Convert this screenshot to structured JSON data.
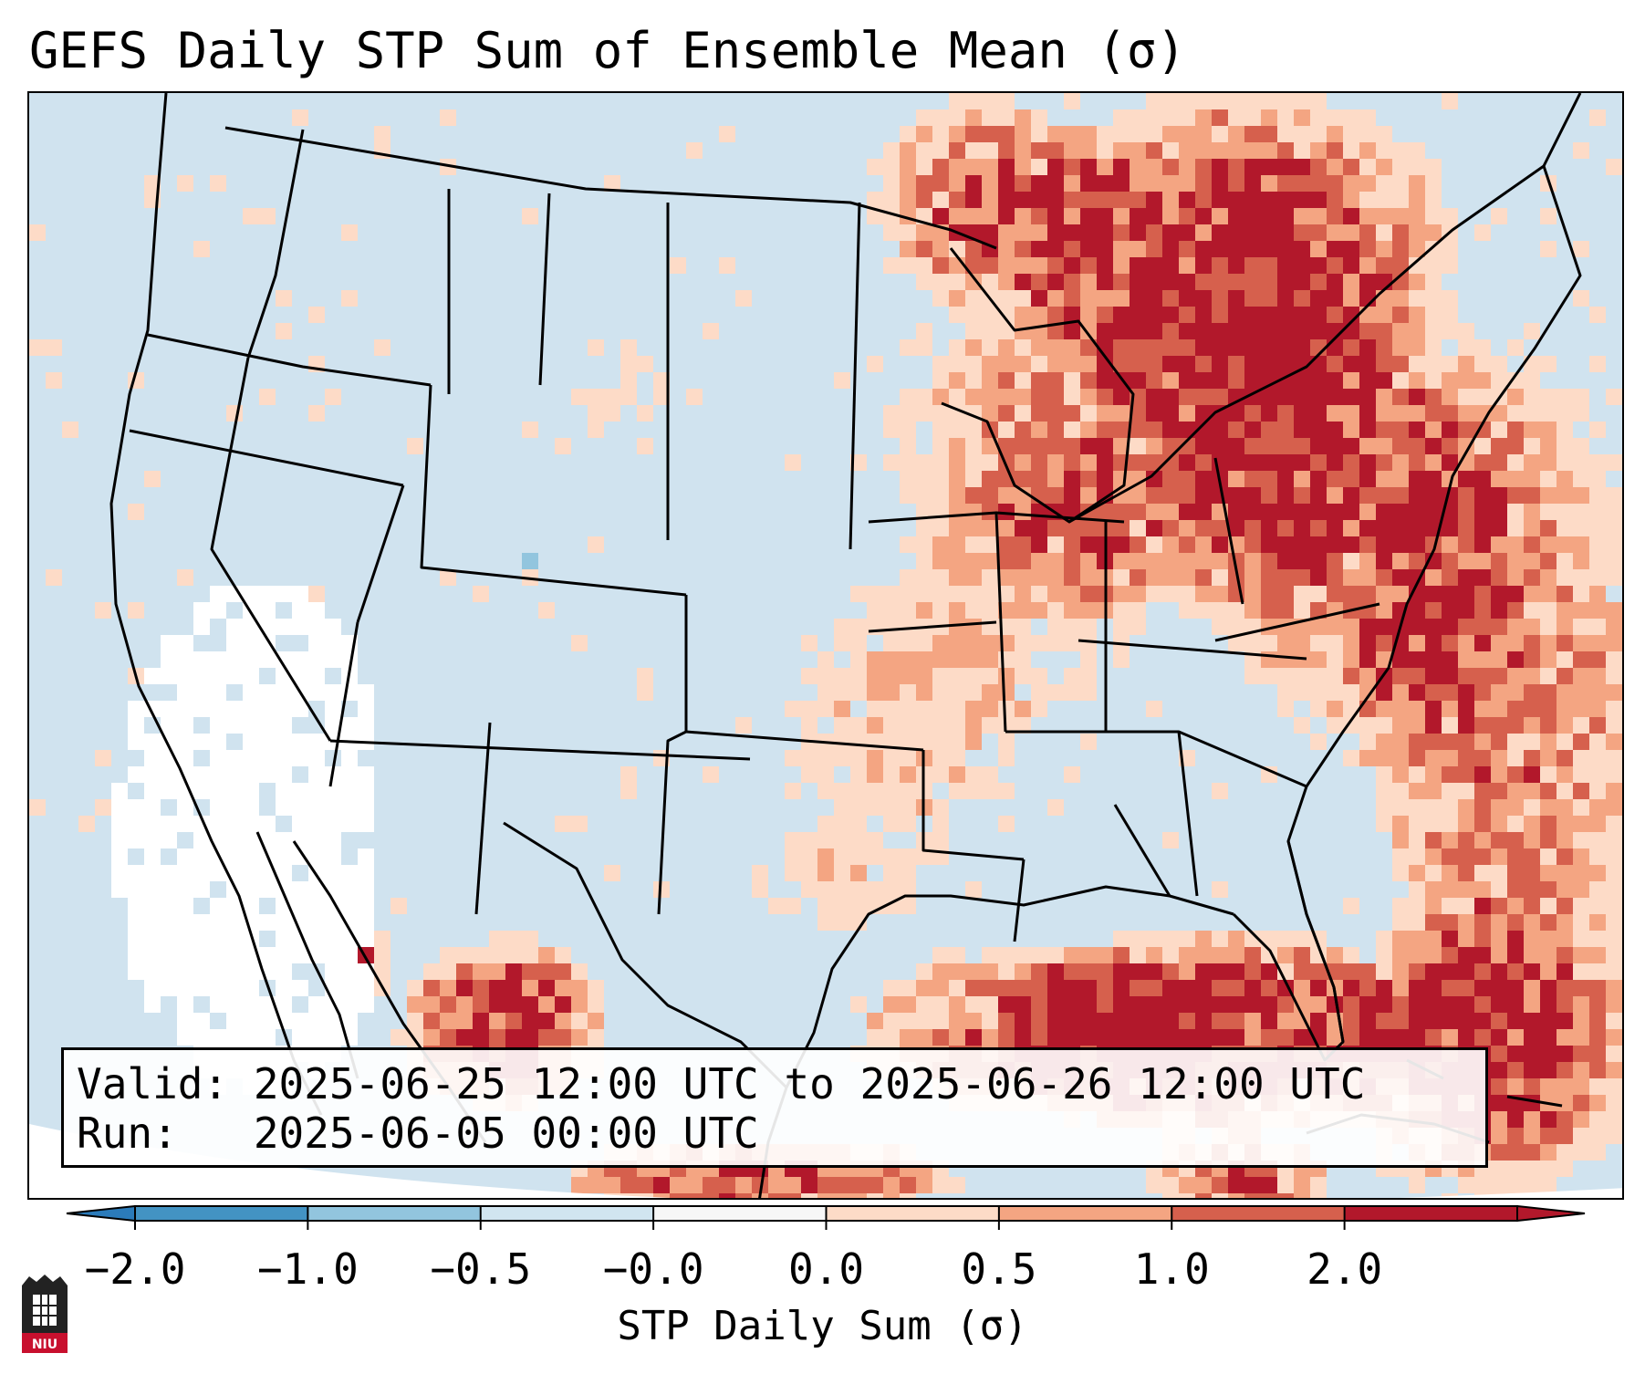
{
  "title": "GEFS Daily STP Sum of Ensemble Mean (σ)",
  "valid": {
    "line1": "Valid: 2025-06-25 12:00 UTC to 2025-06-26 12:00 UTC",
    "line2": "Run:   2025-06-05 00:00 UTC"
  },
  "colorbar": {
    "label": "STP Daily Sum (σ)",
    "ticks": [
      "−2.0",
      "−1.0",
      "−0.5",
      "−0.0",
      "0.0",
      "0.5",
      "1.0",
      "2.0"
    ],
    "colors": [
      "#2b7bba",
      "#4393c3",
      "#92c5de",
      "#d1e5f0",
      "#f7f7f7",
      "#fddbc7",
      "#f4a582",
      "#d6604d",
      "#b2182b"
    ]
  },
  "logo": {
    "text": "NIU"
  },
  "colors": {
    "ocean_bg": "#d0e3ef",
    "white_zone": "#ffffff",
    "light_red": "#fddbc7",
    "mid_red": "#f4a582",
    "red": "#d6604d",
    "dark_red": "#b2182b",
    "light_blue": "#92c5de"
  }
}
